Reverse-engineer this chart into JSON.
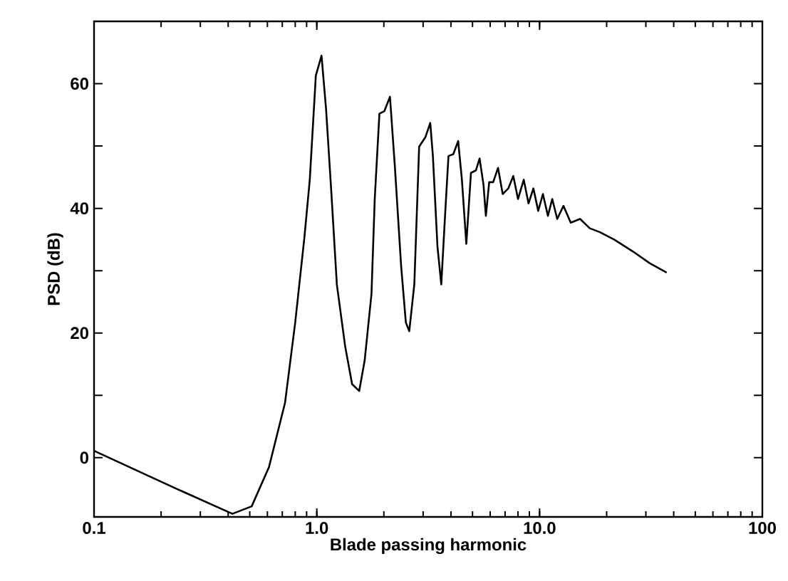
{
  "chart_data": {
    "type": "line",
    "xlabel": "Blade passing harmonic",
    "ylabel": "PSD (dB)",
    "log": "x",
    "xlim": [
      0.1,
      100
    ],
    "ylim": [
      -9.5,
      70
    ],
    "xticks": [
      0.1,
      {
        "value": 1,
        "label": "1.0"
      },
      {
        "value": 10,
        "label": "10.0"
      },
      100
    ],
    "yticks": [
      0,
      {
        "value": 10,
        "label": null
      },
      20,
      {
        "value": 30,
        "label": null
      },
      40,
      {
        "value": 50,
        "label": null
      },
      60
    ],
    "marker": "none",
    "line_style": "solid",
    "series": [
      {
        "color": "#000000",
        "x": [
          0.1,
          0.235,
          0.418,
          0.51,
          0.61,
          0.72,
          0.8,
          0.88,
          0.93,
          0.99,
          1.05,
          1.1,
          1.16,
          1.23,
          1.34,
          1.44,
          1.55,
          1.64,
          1.76,
          1.82,
          1.91,
          2.01,
          2.13,
          2.24,
          2.39,
          2.51,
          2.6,
          2.74,
          2.88,
          3.07,
          3.23,
          3.32,
          3.48,
          3.62,
          3.77,
          3.9,
          4.1,
          4.31,
          4.48,
          4.69,
          4.92,
          5.18,
          5.38,
          5.6,
          5.74,
          5.94,
          6.19,
          6.51,
          6.83,
          7.24,
          7.62,
          8.0,
          8.49,
          8.92,
          9.38,
          9.86,
          10.35,
          10.9,
          11.4,
          12.0,
          12.8,
          13.8,
          15.2,
          16.8,
          18.6,
          21.6,
          26.2,
          31.2,
          37.2
        ],
        "values": [
          1.1,
          -5,
          -9,
          -7.8,
          -1.5,
          8.8,
          21.7,
          35.4,
          44.6,
          61.3,
          64.5,
          56,
          43,
          27.8,
          17.9,
          11.8,
          10.7,
          15.6,
          26.3,
          41.5,
          55.2,
          55.6,
          57.9,
          46.8,
          30.8,
          21.7,
          20.3,
          27.8,
          49.9,
          51.4,
          53.7,
          48.4,
          33.9,
          27.8,
          39.2,
          48.4,
          48.7,
          50.8,
          44.6,
          34.3,
          45.7,
          46.1,
          48,
          43.8,
          38.8,
          44.2,
          44.2,
          46.5,
          42.3,
          43.2,
          45.2,
          41.5,
          44.6,
          40.8,
          43.2,
          39.6,
          42.3,
          38.8,
          41.5,
          38.3,
          40.4,
          37.7,
          38.3,
          36.8,
          36.2,
          35.0,
          33.1,
          31.2,
          29.7
        ]
      }
    ]
  }
}
